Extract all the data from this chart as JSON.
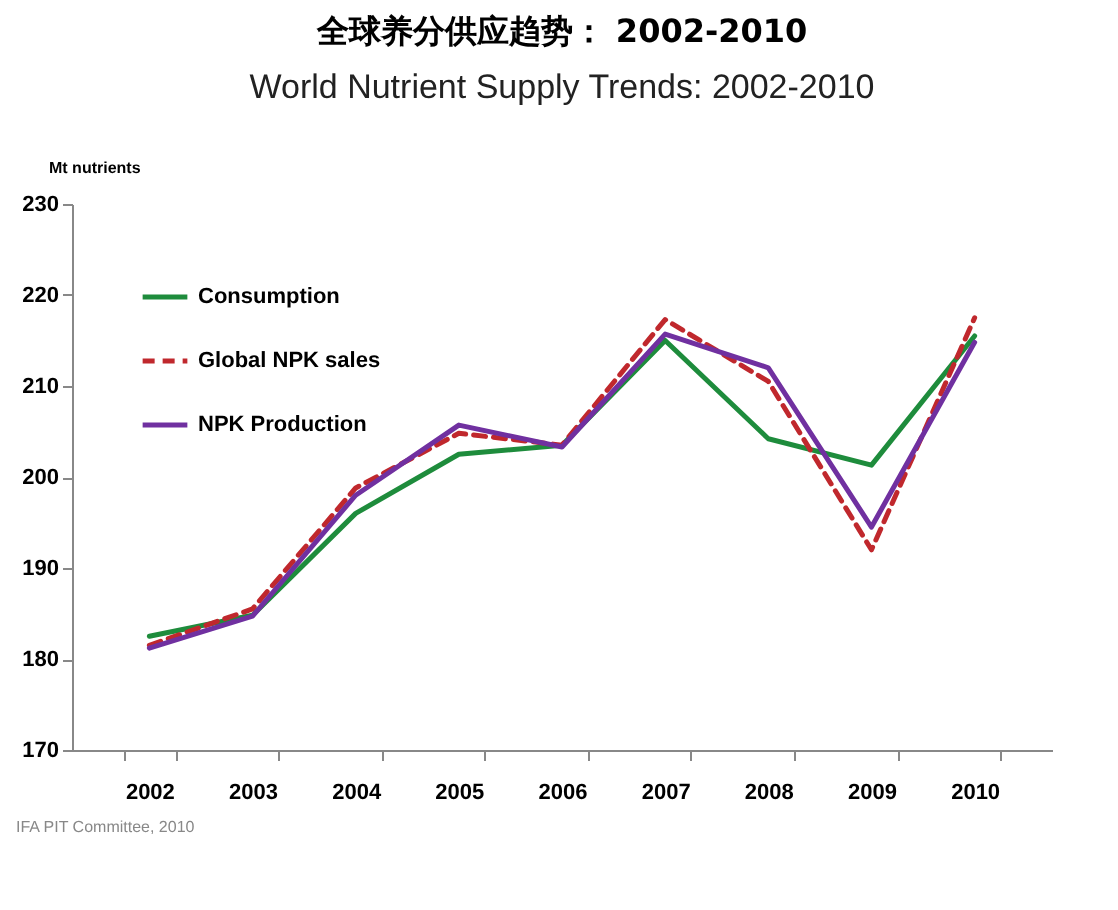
{
  "chart_data": {
    "type": "line",
    "title": "全球养分供应趋势： 2002-2010",
    "subtitle": "World Nutrient Supply Trends: 2002-2010",
    "ylabel": "Mt nutrients",
    "categories": [
      "2002",
      "2003",
      "2004",
      "2005",
      "2006",
      "2007",
      "2008",
      "2009",
      "2010"
    ],
    "series": [
      {
        "name": "Consumption",
        "color": "#1e8c3c",
        "line_style": "solid",
        "values": [
          182.5,
          184.8,
          196,
          202.5,
          203.5,
          215,
          204.2,
          201.3,
          215.5
        ]
      },
      {
        "name": "Global NPK sales",
        "color": "#c0282d",
        "line_style": "dashed",
        "values": [
          181.5,
          185.5,
          198.8,
          204.8,
          203.5,
          217.3,
          210.5,
          192,
          217.5
        ]
      },
      {
        "name": "NPK Production",
        "color": "#7030a0",
        "line_style": "solid",
        "values": [
          181.2,
          184.7,
          198,
          205.7,
          203.3,
          215.7,
          212,
          194.5,
          214.8
        ]
      }
    ],
    "ylim": [
      170,
      230
    ],
    "yticks": [
      170,
      180,
      190,
      200,
      210,
      220,
      230
    ],
    "grid": false,
    "legend": "top left",
    "marker": "none",
    "annotations": [
      "IFA PIT Committee, 2010"
    ]
  }
}
